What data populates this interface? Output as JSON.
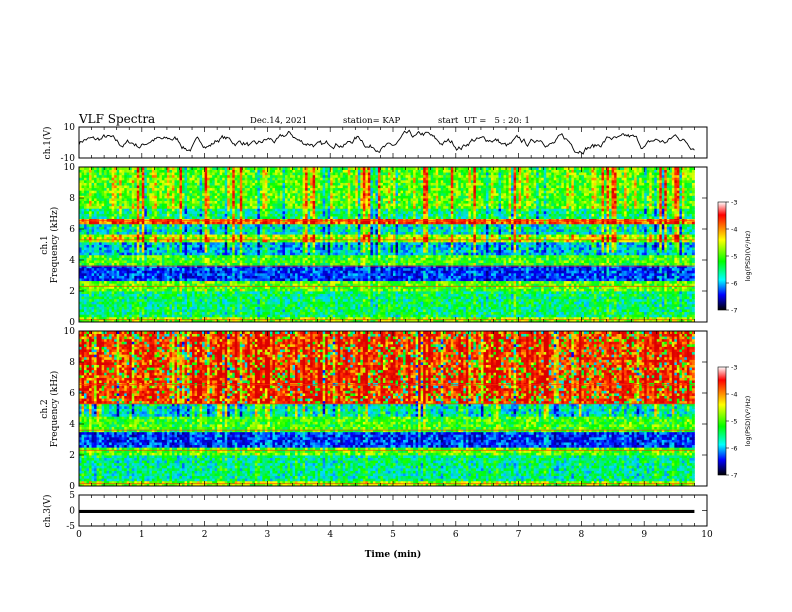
{
  "header": {
    "title": "VLF Spectra",
    "date": "Dec.14, 2021",
    "station": "station= KAP",
    "start": "start  UT =   5 : 20: 1"
  },
  "chart_data": [
    {
      "type": "line",
      "name": "ch1-waveform",
      "ylabel": "ch.1(V)",
      "ylim": [
        -10,
        10
      ],
      "yticks": [
        "10",
        "-10"
      ],
      "xlim": [
        0,
        10
      ],
      "xlabel": "",
      "description_values": {
        "x_start": 0,
        "x_end": 9.8,
        "baseline_y": 0,
        "amplitude_range": [
          -6,
          6
        ]
      }
    },
    {
      "type": "heatmap",
      "name": "ch1-spectrogram",
      "ylabel": "ch.1\nFrequency (kHz)",
      "ylabel_lines": [
        "ch.1",
        "Frequency (kHz)"
      ],
      "ylim": [
        0,
        10
      ],
      "yticks": [
        "0",
        "2",
        "4",
        "6",
        "8",
        "10"
      ],
      "xlim": [
        0,
        10
      ],
      "x_extent": [
        0,
        9.8
      ],
      "colorbar": {
        "label": "log(PSD)(V²/Hz)",
        "ticks": [
          "-3",
          "-4",
          "-5",
          "-6",
          "-7"
        ],
        "range": [
          -7,
          -3
        ]
      },
      "bands_khz": [
        {
          "from": 0.0,
          "to": 0.3,
          "level": -4.6
        },
        {
          "from": 0.3,
          "to": 2.0,
          "level": -5.3
        },
        {
          "from": 2.0,
          "to": 2.6,
          "level": -4.8
        },
        {
          "from": 2.6,
          "to": 3.6,
          "level": -6.3
        },
        {
          "from": 3.6,
          "to": 4.4,
          "level": -4.9
        },
        {
          "from": 4.4,
          "to": 5.1,
          "level": -5.8
        },
        {
          "from": 5.1,
          "to": 5.6,
          "level": -4.5
        },
        {
          "from": 5.6,
          "to": 6.4,
          "level": -5.6
        },
        {
          "from": 6.4,
          "to": 6.7,
          "level": -3.6
        },
        {
          "from": 6.7,
          "to": 7.4,
          "level": -5.3
        },
        {
          "from": 7.4,
          "to": 10.0,
          "level": -4.8
        }
      ]
    },
    {
      "type": "heatmap",
      "name": "ch2-spectrogram",
      "ylabel": "ch.2\nFrequency (kHz)",
      "ylabel_lines": [
        "ch.2",
        "Frequency (kHz)"
      ],
      "ylim": [
        0,
        10
      ],
      "yticks": [
        "0",
        "2",
        "4",
        "6",
        "8",
        "10"
      ],
      "xlim": [
        0,
        10
      ],
      "x_extent": [
        0,
        9.8
      ],
      "colorbar": {
        "label": "log(PSD)(V²/Hz)",
        "ticks": [
          "-3",
          "-4",
          "-5",
          "-6",
          "-7"
        ],
        "range": [
          -7,
          -3
        ]
      },
      "bands_khz": [
        {
          "from": 0.0,
          "to": 0.3,
          "level": -4.6
        },
        {
          "from": 0.3,
          "to": 2.0,
          "level": -5.4
        },
        {
          "from": 2.0,
          "to": 2.5,
          "level": -4.8
        },
        {
          "from": 2.5,
          "to": 3.5,
          "level": -6.3
        },
        {
          "from": 3.5,
          "to": 4.5,
          "level": -4.9
        },
        {
          "from": 4.5,
          "to": 5.4,
          "level": -5.6
        },
        {
          "from": 5.4,
          "to": 10.0,
          "level": -3.5
        }
      ]
    },
    {
      "type": "line",
      "name": "ch3-waveform",
      "ylabel": "ch.3(V)",
      "ylim": [
        -5,
        5
      ],
      "yticks": [
        "5",
        "0",
        "-5"
      ],
      "xlim": [
        0,
        10
      ],
      "xlabel": "Time  (min)",
      "xticks": [
        "0",
        "1",
        "2",
        "3",
        "4",
        "5",
        "6",
        "7",
        "8",
        "9",
        "10"
      ],
      "description_values": {
        "x_start": 0,
        "x_end": 9.8,
        "baseline_y": -0.3,
        "band_halfwidth": 0.5
      }
    }
  ]
}
